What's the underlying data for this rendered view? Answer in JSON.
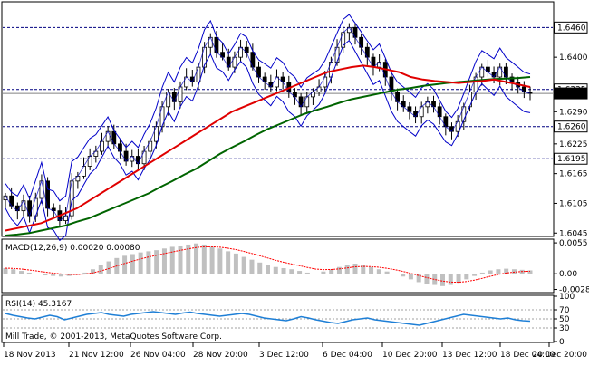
{
  "chart_data": {
    "type": "candlestick",
    "symbol": "",
    "x_tick_labels": [
      "18 Nov 2013",
      "21 Nov 12:00",
      "26 Nov 04:00",
      "28 Nov 20:00",
      "3 Dec 12:00",
      "6 Dec 04:00",
      "10 Dec 20:00",
      "13 Dec 12:00",
      "18 Dec 04:00",
      "20 Dec 20:00"
    ],
    "price_panel": {
      "ylim": [
        1.604,
        1.651
      ],
      "y_ticks": [
        1.646,
        1.64,
        1.6335,
        1.6327,
        1.629,
        1.626,
        1.6225,
        1.6195,
        1.6165,
        1.6105,
        1.6045
      ],
      "y_tick_labels": [
        "1.6460",
        "1.6400",
        "1.6335",
        "1.6327",
        "1.6290",
        "1.6260",
        "1.6225",
        "1.6195",
        "1.6165",
        "1.6105",
        "1.6045"
      ],
      "highlight_levels": [
        {
          "value": 1.646,
          "label": "1.6460"
        },
        {
          "value": 1.6335,
          "label": "1.6335"
        },
        {
          "value": 1.6327,
          "label": "1.6327"
        },
        {
          "value": 1.626,
          "label": "1.6260"
        },
        {
          "value": 1.6195,
          "label": "1.6195"
        }
      ],
      "current_price": 1.6327,
      "ohlc_close_samples": [
        1.612,
        1.61,
        1.609,
        1.611,
        1.608,
        1.6115,
        1.615,
        1.6095,
        1.609,
        1.607,
        1.608,
        1.615,
        1.616,
        1.618,
        1.62,
        1.621,
        1.623,
        1.625,
        1.6225,
        1.621,
        1.619,
        1.62,
        1.6185,
        1.621,
        1.623,
        1.626,
        1.63,
        1.633,
        1.631,
        1.634,
        1.636,
        1.635,
        1.638,
        1.642,
        1.644,
        1.641,
        1.64,
        1.638,
        1.64,
        1.642,
        1.641,
        1.638,
        1.636,
        1.635,
        1.634,
        1.636,
        1.635,
        1.633,
        1.632,
        1.63,
        1.632,
        1.633,
        1.634,
        1.636,
        1.639,
        1.642,
        1.645,
        1.646,
        1.644,
        1.642,
        1.64,
        1.638,
        1.639,
        1.636,
        1.633,
        1.631,
        1.63,
        1.629,
        1.628,
        1.63,
        1.631,
        1.63,
        1.628,
        1.626,
        1.625,
        1.627,
        1.63,
        1.633,
        1.636,
        1.638,
        1.637,
        1.636,
        1.638,
        1.636,
        1.635,
        1.634,
        1.633,
        1.6327
      ],
      "ma_red": [
        1.605,
        1.6055,
        1.606,
        1.6065,
        1.6075,
        1.6085,
        1.6095,
        1.611,
        1.6125,
        1.614,
        1.6155,
        1.617,
        1.6185,
        1.62,
        1.6215,
        1.623,
        1.6245,
        1.626,
        1.6275,
        1.629,
        1.63,
        1.631,
        1.632,
        1.633,
        1.634,
        1.635,
        1.636,
        1.637,
        1.6375,
        1.638,
        1.6383,
        1.638,
        1.6375,
        1.637,
        1.636,
        1.6355,
        1.6352,
        1.635,
        1.6348,
        1.635,
        1.6352,
        1.6355,
        1.635,
        1.6345,
        1.634
      ],
      "ma_green": [
        1.604,
        1.6042,
        1.6045,
        1.605,
        1.6055,
        1.606,
        1.6068,
        1.6075,
        1.6085,
        1.6095,
        1.6105,
        1.6115,
        1.6125,
        1.6138,
        1.615,
        1.6163,
        1.6175,
        1.619,
        1.6205,
        1.6218,
        1.623,
        1.6243,
        1.6255,
        1.6265,
        1.6275,
        1.6285,
        1.6293,
        1.63,
        1.6308,
        1.6315,
        1.632,
        1.6325,
        1.633,
        1.6335,
        1.6338,
        1.6342,
        1.6345,
        1.6348,
        1.635,
        1.6352,
        1.6354,
        1.6356,
        1.6357,
        1.6358,
        1.636
      ]
    },
    "macd_panel": {
      "label": "MACD(12,26,9) 0.00020 0.00080",
      "ylim": [
        -0.0032,
        0.006
      ],
      "y_tick_labels": [
        "0.0055",
        "0.00",
        "-0.0028"
      ],
      "y_ticks": [
        0.0055,
        0.0,
        -0.0028
      ],
      "histogram": [
        0.001,
        0.0008,
        0.0005,
        0.0002,
        -0.0001,
        -0.0003,
        -0.0004,
        -0.0005,
        -0.0004,
        -0.0002,
        0.0002,
        0.0008,
        0.0015,
        0.0022,
        0.0028,
        0.0032,
        0.0035,
        0.0038,
        0.004,
        0.0042,
        0.0045,
        0.0048,
        0.005,
        0.0052,
        0.0054,
        0.0052,
        0.0048,
        0.0045,
        0.004,
        0.0036,
        0.003,
        0.0025,
        0.002,
        0.0016,
        0.0012,
        0.001,
        0.0008,
        0.0005,
        0.0002,
        0.0,
        0.0004,
        0.0008,
        0.0012,
        0.0016,
        0.0018,
        0.0015,
        0.0012,
        0.0008,
        0.0004,
        0.0,
        -0.0005,
        -0.001,
        -0.0015,
        -0.0018,
        -0.002,
        -0.0022,
        -0.002,
        -0.0016,
        -0.001,
        -0.0004,
        0.0002,
        0.0006,
        0.0008,
        0.0009,
        0.0008,
        0.0007,
        0.0006
      ],
      "signal_color": "#ff0000",
      "histogram_color": "#c0c0c0"
    },
    "rsi_panel": {
      "label": "RSI(14) 45.3167",
      "ylim": [
        0,
        100
      ],
      "y_tick_labels": [
        "100",
        "70",
        "50",
        "30",
        "0"
      ],
      "y_ticks": [
        100,
        70,
        50,
        30,
        0
      ],
      "values": [
        62,
        58,
        55,
        52,
        50,
        54,
        58,
        55,
        48,
        52,
        56,
        60,
        62,
        64,
        60,
        58,
        56,
        60,
        62,
        64,
        66,
        64,
        62,
        60,
        63,
        65,
        62,
        60,
        58,
        56,
        58,
        60,
        62,
        60,
        56,
        52,
        50,
        48,
        46,
        50,
        55,
        52,
        48,
        45,
        42,
        40,
        44,
        48,
        50,
        52,
        48,
        46,
        44,
        42,
        40,
        38,
        36,
        40,
        44,
        48,
        52,
        56,
        60,
        58,
        56,
        54,
        52,
        50,
        52,
        48,
        46,
        45
      ],
      "line_color": "#1e7fd6"
    },
    "copyright": "Mill Trade, © 2001-2013, MetaQuotes Software Corp.",
    "colors": {
      "candle_border": "#000000",
      "bollinger": "#0000c8",
      "ma_fast": "#e00000",
      "ma_slow": "#006400",
      "level_line": "#000080",
      "current_price_box": "#000000"
    }
  }
}
